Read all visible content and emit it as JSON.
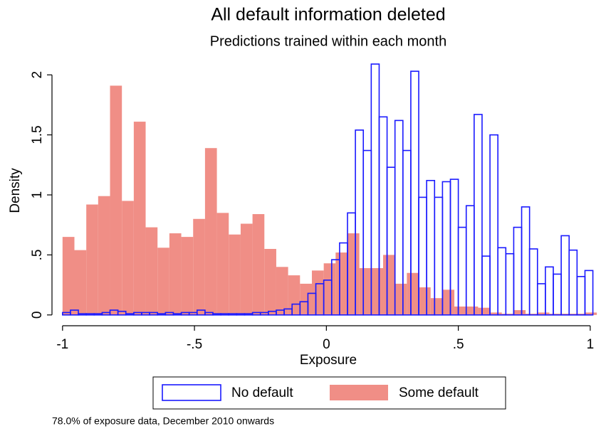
{
  "chart_data": {
    "type": "histogram",
    "title": "All default information deleted",
    "subtitle": "Predictions trained within each month",
    "x_label": "Exposure",
    "y_label": "Density",
    "note": "78.0% of exposure data, December 2010 onwards",
    "xlim": [
      -1.04,
      1.03
    ],
    "ylim": [
      -0.09,
      2.12
    ],
    "xticks": [
      -1,
      {
        "value": -0.5,
        "label": "-.5"
      },
      0,
      {
        "value": 0.5,
        "label": ".5"
      },
      1
    ],
    "yticks": [
      0,
      {
        "value": 0.5,
        "label": ".5"
      },
      1,
      1.5,
      2
    ],
    "series": [
      {
        "name": "Some default",
        "color": "#f08e86",
        "style": "filled",
        "bins": [
          -1,
          -0.955,
          -0.91,
          -0.865,
          -0.82,
          -0.775,
          -0.73,
          -0.685,
          -0.64,
          -0.595,
          -0.55,
          -0.505,
          -0.46,
          -0.415,
          -0.37,
          -0.325,
          -0.28,
          -0.235,
          -0.19,
          -0.145,
          -0.1,
          -0.055,
          -0.01,
          0.035,
          0.08,
          0.125,
          0.17,
          0.215,
          0.26,
          0.305,
          0.35,
          0.395,
          0.44,
          0.485,
          0.53,
          0.575,
          0.62,
          0.665,
          0.71,
          0.755,
          0.8,
          0.845,
          0.89,
          0.935,
          0.98,
          1.025
        ],
        "values": [
          0.65,
          0.54,
          0.92,
          0.99,
          1.91,
          0.95,
          1.61,
          0.73,
          0.56,
          0.68,
          0.65,
          0.8,
          1.39,
          0.85,
          0.67,
          0.76,
          0.84,
          0.55,
          0.4,
          0.33,
          0.26,
          0.37,
          0.43,
          0.52,
          0.68,
          0.39,
          0.39,
          0.5,
          0.26,
          0.35,
          0.23,
          0.14,
          0.21,
          0.07,
          0.07,
          0.06,
          0.02,
          0.01,
          0.04,
          0.01,
          0.02,
          0.01,
          0.01,
          0.01,
          0.02
        ]
      },
      {
        "name": "No default",
        "color": "#1a1aff",
        "style": "outline",
        "bins": [
          -1,
          -0.97,
          -0.94,
          -0.91,
          -0.88,
          -0.85,
          -0.82,
          -0.79,
          -0.76,
          -0.73,
          -0.7,
          -0.67,
          -0.64,
          -0.61,
          -0.58,
          -0.55,
          -0.52,
          -0.49,
          -0.46,
          -0.43,
          -0.4,
          -0.37,
          -0.34,
          -0.31,
          -0.28,
          -0.25,
          -0.22,
          -0.19,
          -0.16,
          -0.13,
          -0.1,
          -0.07,
          -0.04,
          -0.01,
          0.02,
          0.05,
          0.08,
          0.11,
          0.14,
          0.17,
          0.2,
          0.23,
          0.26,
          0.29,
          0.32,
          0.35,
          0.38,
          0.41,
          0.44,
          0.47,
          0.5,
          0.53,
          0.56,
          0.59,
          0.62,
          0.65,
          0.68,
          0.71,
          0.74,
          0.77,
          0.8,
          0.83,
          0.86,
          0.89,
          0.92,
          0.95,
          0.98,
          1.01
        ],
        "values": [
          0.02,
          0.04,
          0.01,
          0.01,
          0.01,
          0.02,
          0.04,
          0.03,
          0.01,
          0.02,
          0.02,
          0.02,
          0.01,
          0.02,
          0.01,
          0.02,
          0.02,
          0.04,
          0.02,
          0.01,
          0.01,
          0.01,
          0.01,
          0.01,
          0.02,
          0.02,
          0.03,
          0.04,
          0.05,
          0.09,
          0.11,
          0.18,
          0.26,
          0.29,
          0.46,
          0.6,
          0.85,
          1.54,
          1.37,
          2.09,
          1.65,
          1.23,
          1.62,
          1.37,
          2.03,
          0.98,
          1.12,
          0.98,
          1.11,
          1.13,
          0.73,
          0.91,
          1.67,
          0.49,
          1.5,
          0.56,
          0.51,
          0.73,
          0.9,
          0.55,
          0.26,
          0.4,
          0.34,
          0.66,
          0.54,
          0.32,
          0.37
        ]
      }
    ],
    "legend_order": [
      1,
      0
    ],
    "legend": "bottom"
  }
}
